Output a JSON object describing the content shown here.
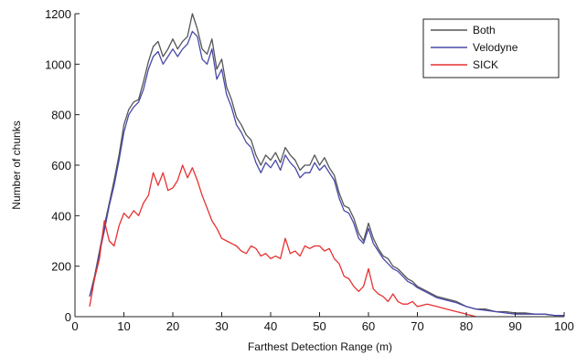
{
  "chart_data": {
    "type": "line",
    "xlabel": "Farthest Detection Range (m)",
    "ylabel": "Number of chunks",
    "xlim": [
      0,
      100
    ],
    "ylim": [
      0,
      1200
    ],
    "x_ticks": [
      0,
      10,
      20,
      30,
      40,
      50,
      60,
      70,
      80,
      90,
      100
    ],
    "y_ticks": [
      0,
      200,
      400,
      600,
      800,
      1000,
      1200
    ],
    "grid": false,
    "legend_position": "top-right",
    "series": [
      {
        "name": "Both",
        "color": "#555555",
        "points": [
          [
            3,
            80
          ],
          [
            4,
            160
          ],
          [
            5,
            260
          ],
          [
            6,
            360
          ],
          [
            7,
            450
          ],
          [
            8,
            540
          ],
          [
            9,
            640
          ],
          [
            10,
            760
          ],
          [
            11,
            820
          ],
          [
            12,
            850
          ],
          [
            13,
            860
          ],
          [
            14,
            930
          ],
          [
            15,
            1010
          ],
          [
            16,
            1070
          ],
          [
            17,
            1090
          ],
          [
            18,
            1030
          ],
          [
            19,
            1060
          ],
          [
            20,
            1100
          ],
          [
            21,
            1060
          ],
          [
            22,
            1090
          ],
          [
            23,
            1110
          ],
          [
            24,
            1200
          ],
          [
            25,
            1140
          ],
          [
            26,
            1060
          ],
          [
            27,
            1040
          ],
          [
            28,
            1100
          ],
          [
            29,
            980
          ],
          [
            30,
            1020
          ],
          [
            31,
            910
          ],
          [
            32,
            860
          ],
          [
            33,
            790
          ],
          [
            34,
            760
          ],
          [
            35,
            720
          ],
          [
            36,
            700
          ],
          [
            37,
            640
          ],
          [
            38,
            600
          ],
          [
            39,
            640
          ],
          [
            40,
            620
          ],
          [
            41,
            650
          ],
          [
            42,
            610
          ],
          [
            43,
            670
          ],
          [
            44,
            640
          ],
          [
            45,
            620
          ],
          [
            46,
            580
          ],
          [
            47,
            600
          ],
          [
            48,
            600
          ],
          [
            49,
            640
          ],
          [
            50,
            600
          ],
          [
            51,
            630
          ],
          [
            52,
            590
          ],
          [
            53,
            560
          ],
          [
            54,
            490
          ],
          [
            55,
            440
          ],
          [
            56,
            430
          ],
          [
            57,
            390
          ],
          [
            58,
            330
          ],
          [
            59,
            300
          ],
          [
            60,
            370
          ],
          [
            61,
            310
          ],
          [
            62,
            270
          ],
          [
            63,
            240
          ],
          [
            64,
            230
          ],
          [
            65,
            200
          ],
          [
            66,
            190
          ],
          [
            67,
            170
          ],
          [
            68,
            150
          ],
          [
            69,
            140
          ],
          [
            70,
            120
          ],
          [
            72,
            100
          ],
          [
            74,
            80
          ],
          [
            76,
            70
          ],
          [
            78,
            60
          ],
          [
            80,
            40
          ],
          [
            82,
            30
          ],
          [
            84,
            30
          ],
          [
            86,
            20
          ],
          [
            88,
            20
          ],
          [
            90,
            15
          ],
          [
            92,
            15
          ],
          [
            94,
            10
          ],
          [
            96,
            10
          ],
          [
            98,
            5
          ],
          [
            100,
            5
          ]
        ]
      },
      {
        "name": "Velodyne",
        "color": "#4848a8",
        "points": [
          [
            3,
            80
          ],
          [
            4,
            150
          ],
          [
            5,
            250
          ],
          [
            6,
            340
          ],
          [
            7,
            440
          ],
          [
            8,
            520
          ],
          [
            9,
            620
          ],
          [
            10,
            730
          ],
          [
            11,
            800
          ],
          [
            12,
            830
          ],
          [
            13,
            850
          ],
          [
            14,
            900
          ],
          [
            15,
            980
          ],
          [
            16,
            1030
          ],
          [
            17,
            1050
          ],
          [
            18,
            1000
          ],
          [
            19,
            1030
          ],
          [
            20,
            1060
          ],
          [
            21,
            1030
          ],
          [
            22,
            1060
          ],
          [
            23,
            1080
          ],
          [
            24,
            1130
          ],
          [
            25,
            1110
          ],
          [
            26,
            1020
          ],
          [
            27,
            1000
          ],
          [
            28,
            1060
          ],
          [
            29,
            940
          ],
          [
            30,
            980
          ],
          [
            31,
            880
          ],
          [
            32,
            830
          ],
          [
            33,
            760
          ],
          [
            34,
            730
          ],
          [
            35,
            690
          ],
          [
            36,
            670
          ],
          [
            37,
            610
          ],
          [
            38,
            570
          ],
          [
            39,
            610
          ],
          [
            40,
            590
          ],
          [
            41,
            620
          ],
          [
            42,
            580
          ],
          [
            43,
            640
          ],
          [
            44,
            610
          ],
          [
            45,
            590
          ],
          [
            46,
            550
          ],
          [
            47,
            570
          ],
          [
            48,
            570
          ],
          [
            49,
            610
          ],
          [
            50,
            580
          ],
          [
            51,
            600
          ],
          [
            52,
            570
          ],
          [
            53,
            540
          ],
          [
            54,
            470
          ],
          [
            55,
            420
          ],
          [
            56,
            410
          ],
          [
            57,
            370
          ],
          [
            58,
            310
          ],
          [
            59,
            290
          ],
          [
            60,
            350
          ],
          [
            61,
            290
          ],
          [
            62,
            260
          ],
          [
            63,
            230
          ],
          [
            64,
            210
          ],
          [
            65,
            190
          ],
          [
            66,
            180
          ],
          [
            67,
            160
          ],
          [
            68,
            140
          ],
          [
            69,
            130
          ],
          [
            70,
            115
          ],
          [
            72,
            95
          ],
          [
            74,
            75
          ],
          [
            76,
            65
          ],
          [
            78,
            55
          ],
          [
            80,
            40
          ],
          [
            82,
            30
          ],
          [
            84,
            25
          ],
          [
            86,
            20
          ],
          [
            88,
            15
          ],
          [
            90,
            10
          ],
          [
            92,
            10
          ],
          [
            94,
            10
          ],
          [
            96,
            10
          ],
          [
            98,
            5
          ],
          [
            100,
            5
          ]
        ]
      },
      {
        "name": "SICK",
        "color": "#e83030",
        "points": [
          [
            3,
            40
          ],
          [
            4,
            150
          ],
          [
            5,
            230
          ],
          [
            6,
            380
          ],
          [
            7,
            300
          ],
          [
            8,
            280
          ],
          [
            9,
            360
          ],
          [
            10,
            410
          ],
          [
            11,
            390
          ],
          [
            12,
            420
          ],
          [
            13,
            400
          ],
          [
            14,
            450
          ],
          [
            15,
            480
          ],
          [
            16,
            570
          ],
          [
            17,
            520
          ],
          [
            18,
            570
          ],
          [
            19,
            500
          ],
          [
            20,
            510
          ],
          [
            21,
            540
          ],
          [
            22,
            600
          ],
          [
            23,
            550
          ],
          [
            24,
            590
          ],
          [
            25,
            540
          ],
          [
            26,
            480
          ],
          [
            27,
            430
          ],
          [
            28,
            380
          ],
          [
            29,
            350
          ],
          [
            30,
            310
          ],
          [
            31,
            300
          ],
          [
            32,
            290
          ],
          [
            33,
            280
          ],
          [
            34,
            260
          ],
          [
            35,
            250
          ],
          [
            36,
            280
          ],
          [
            37,
            270
          ],
          [
            38,
            240
          ],
          [
            39,
            250
          ],
          [
            40,
            230
          ],
          [
            41,
            240
          ],
          [
            42,
            230
          ],
          [
            43,
            310
          ],
          [
            44,
            250
          ],
          [
            45,
            260
          ],
          [
            46,
            240
          ],
          [
            47,
            280
          ],
          [
            48,
            270
          ],
          [
            49,
            280
          ],
          [
            50,
            280
          ],
          [
            51,
            260
          ],
          [
            52,
            270
          ],
          [
            53,
            230
          ],
          [
            54,
            210
          ],
          [
            55,
            160
          ],
          [
            56,
            150
          ],
          [
            57,
            120
          ],
          [
            58,
            100
          ],
          [
            59,
            120
          ],
          [
            60,
            190
          ],
          [
            61,
            110
          ],
          [
            62,
            90
          ],
          [
            63,
            80
          ],
          [
            64,
            60
          ],
          [
            65,
            90
          ],
          [
            66,
            60
          ],
          [
            67,
            50
          ],
          [
            68,
            50
          ],
          [
            69,
            60
          ],
          [
            70,
            40
          ],
          [
            72,
            50
          ],
          [
            74,
            40
          ],
          [
            76,
            30
          ],
          [
            78,
            20
          ],
          [
            80,
            10
          ],
          [
            82,
            0
          ]
        ]
      }
    ]
  }
}
